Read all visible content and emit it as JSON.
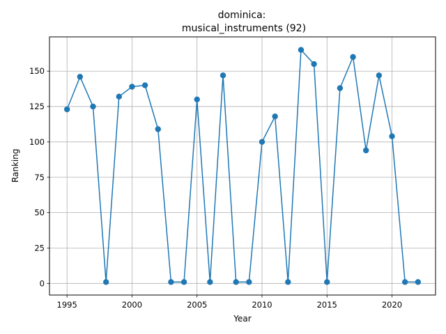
{
  "chart_data": {
    "type": "line",
    "title_line1": "dominica:",
    "title_line2": "musical_instruments (92)",
    "xlabel": "Year",
    "ylabel": "Ranking",
    "xlim": [
      1993.65,
      1995.0
    ],
    "x_ticks": [
      "1995",
      "2000",
      "2005",
      "2010",
      "2015",
      "2020"
    ],
    "y_ticks": [
      "0",
      "25",
      "50",
      "75",
      "100",
      "125",
      "150"
    ],
    "grid": true,
    "line_color": "#1f77b4",
    "series": [
      {
        "x": [
          1995,
          1996,
          1997,
          1998,
          1999,
          2000,
          2001,
          2002,
          2003,
          2004,
          2005,
          2006,
          2007,
          2008,
          2009,
          2010,
          2011,
          2012,
          2013,
          2014,
          2015,
          2016,
          2017,
          2018,
          2019,
          2020,
          2021,
          2022
        ],
        "values": [
          123,
          146,
          125,
          1,
          132,
          139,
          140,
          109,
          1,
          1,
          130,
          1,
          147,
          1,
          1,
          100,
          118,
          1,
          165,
          155,
          1,
          138,
          160,
          94,
          147,
          104,
          1,
          1
        ]
      }
    ]
  }
}
